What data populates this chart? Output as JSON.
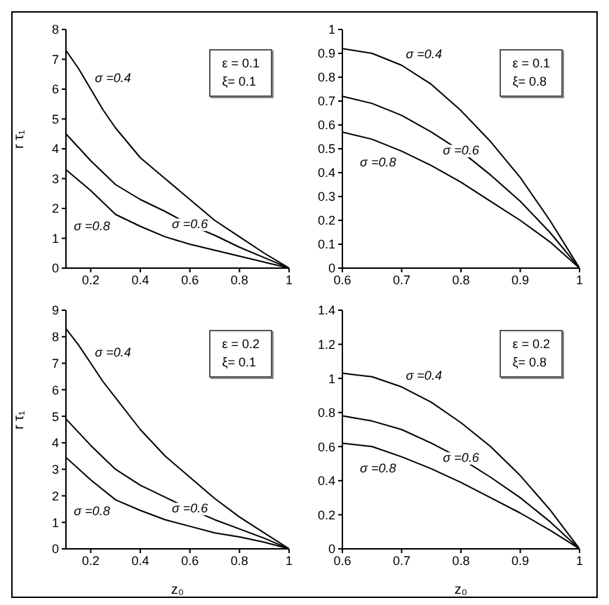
{
  "chart_data": [
    {
      "type": "line",
      "ylabel": "r τ₁",
      "xlim": [
        0.1,
        1
      ],
      "xticks": [
        0.2,
        0.4,
        0.6,
        0.8,
        1
      ],
      "ylim": [
        0,
        8
      ],
      "yticks": [
        0,
        1,
        2,
        3,
        4,
        5,
        6,
        7,
        8
      ],
      "grid": false,
      "legend": false,
      "marker": "none",
      "annotations": [
        "ε = 0.1",
        "ξ= 0.1"
      ],
      "series": [
        {
          "name": "σ =0.4",
          "color": "#000000",
          "x": [
            0.1,
            0.15,
            0.2,
            0.25,
            0.3,
            0.4,
            0.5,
            0.6,
            0.7,
            0.8,
            0.9,
            1
          ],
          "values": [
            7.3,
            6.7,
            6.0,
            5.3,
            4.7,
            3.7,
            3.0,
            2.3,
            1.6,
            1.05,
            0.5,
            0
          ]
        },
        {
          "name": "σ =0.6",
          "color": "#000000",
          "x": [
            0.1,
            0.2,
            0.3,
            0.4,
            0.5,
            0.6,
            0.7,
            0.8,
            0.9,
            1
          ],
          "values": [
            4.5,
            3.6,
            2.8,
            2.3,
            1.9,
            1.45,
            1.1,
            0.7,
            0.35,
            0
          ]
        },
        {
          "name": "σ =0.8",
          "color": "#000000",
          "x": [
            0.1,
            0.2,
            0.3,
            0.4,
            0.5,
            0.6,
            0.7,
            0.8,
            0.9,
            1
          ],
          "values": [
            3.3,
            2.6,
            1.8,
            1.4,
            1.05,
            0.8,
            0.6,
            0.4,
            0.2,
            0
          ]
        }
      ]
    },
    {
      "type": "line",
      "xlim": [
        0.6,
        1
      ],
      "xticks": [
        0.6,
        0.7,
        0.8,
        0.9,
        1
      ],
      "ylim": [
        0,
        1
      ],
      "yticks": [
        0,
        0.1,
        0.2,
        0.3,
        0.4,
        0.5,
        0.6,
        0.7,
        0.8,
        0.9,
        1
      ],
      "grid": false,
      "legend": false,
      "marker": "none",
      "annotations": [
        "ε = 0.1",
        "ξ= 0.8"
      ],
      "series": [
        {
          "name": "σ =0.4",
          "color": "#000000",
          "x": [
            0.6,
            0.65,
            0.7,
            0.75,
            0.8,
            0.85,
            0.9,
            0.95,
            1
          ],
          "values": [
            0.92,
            0.9,
            0.85,
            0.77,
            0.66,
            0.53,
            0.38,
            0.2,
            0
          ]
        },
        {
          "name": "σ =0.6",
          "color": "#000000",
          "x": [
            0.6,
            0.65,
            0.7,
            0.75,
            0.8,
            0.85,
            0.9,
            0.95,
            1
          ],
          "values": [
            0.72,
            0.69,
            0.64,
            0.57,
            0.49,
            0.39,
            0.28,
            0.15,
            0
          ]
        },
        {
          "name": "σ =0.8",
          "color": "#000000",
          "x": [
            0.6,
            0.65,
            0.7,
            0.75,
            0.8,
            0.85,
            0.9,
            0.95,
            1
          ],
          "values": [
            0.57,
            0.54,
            0.49,
            0.43,
            0.36,
            0.28,
            0.2,
            0.11,
            0
          ]
        }
      ]
    },
    {
      "type": "line",
      "xlabel": "z₀",
      "ylabel": "r τ₁",
      "xlim": [
        0.1,
        1
      ],
      "xticks": [
        0.2,
        0.4,
        0.6,
        0.8,
        1
      ],
      "ylim": [
        0,
        9
      ],
      "yticks": [
        0,
        1,
        2,
        3,
        4,
        5,
        6,
        7,
        8,
        9
      ],
      "grid": false,
      "legend": false,
      "marker": "none",
      "annotations": [
        "ε = 0.2",
        "ξ= 0.1"
      ],
      "series": [
        {
          "name": "σ =0.4",
          "color": "#000000",
          "x": [
            0.1,
            0.15,
            0.2,
            0.25,
            0.3,
            0.4,
            0.5,
            0.6,
            0.7,
            0.8,
            0.9,
            1
          ],
          "values": [
            8.3,
            7.7,
            7.0,
            6.3,
            5.7,
            4.5,
            3.5,
            2.7,
            1.9,
            1.2,
            0.6,
            0
          ]
        },
        {
          "name": "σ =0.6",
          "color": "#000000",
          "x": [
            0.1,
            0.2,
            0.3,
            0.4,
            0.5,
            0.6,
            0.7,
            0.8,
            0.9,
            1
          ],
          "values": [
            4.9,
            3.9,
            3.0,
            2.4,
            1.95,
            1.5,
            1.1,
            0.75,
            0.4,
            0
          ]
        },
        {
          "name": "σ =0.8",
          "color": "#000000",
          "x": [
            0.1,
            0.2,
            0.3,
            0.4,
            0.5,
            0.6,
            0.7,
            0.8,
            0.9,
            1
          ],
          "values": [
            3.45,
            2.6,
            1.85,
            1.45,
            1.1,
            0.85,
            0.6,
            0.45,
            0.25,
            0
          ]
        }
      ]
    },
    {
      "type": "line",
      "xlabel": "z₀",
      "xlim": [
        0.6,
        1
      ],
      "xticks": [
        0.6,
        0.7,
        0.8,
        0.9,
        1
      ],
      "ylim": [
        0,
        1.4
      ],
      "yticks": [
        0,
        0.2,
        0.4,
        0.6,
        0.8,
        1,
        1.2,
        1.4
      ],
      "grid": false,
      "legend": false,
      "marker": "none",
      "annotations": [
        "ε = 0.2",
        "ξ= 0.8"
      ],
      "series": [
        {
          "name": "σ =0.4",
          "color": "#000000",
          "x": [
            0.6,
            0.65,
            0.7,
            0.75,
            0.8,
            0.85,
            0.9,
            0.95,
            1
          ],
          "values": [
            1.03,
            1.01,
            0.95,
            0.86,
            0.74,
            0.6,
            0.43,
            0.23,
            0
          ]
        },
        {
          "name": "σ =0.6",
          "color": "#000000",
          "x": [
            0.6,
            0.65,
            0.7,
            0.75,
            0.8,
            0.85,
            0.9,
            0.95,
            1
          ],
          "values": [
            0.78,
            0.75,
            0.7,
            0.62,
            0.53,
            0.42,
            0.3,
            0.16,
            0
          ]
        },
        {
          "name": "σ =0.8",
          "color": "#000000",
          "x": [
            0.6,
            0.65,
            0.7,
            0.75,
            0.8,
            0.85,
            0.9,
            0.95,
            1
          ],
          "values": [
            0.62,
            0.6,
            0.54,
            0.47,
            0.39,
            0.3,
            0.21,
            0.11,
            0
          ]
        }
      ]
    }
  ]
}
